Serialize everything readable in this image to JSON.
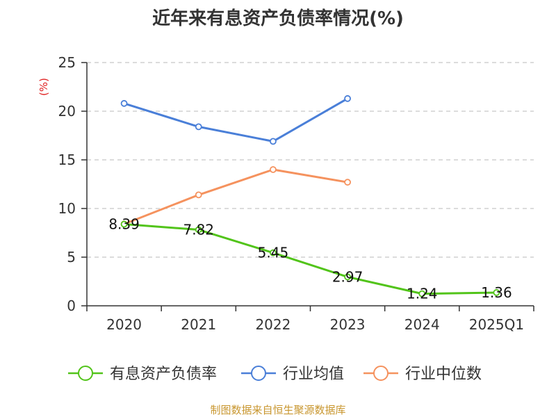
{
  "chart_data": {
    "type": "line",
    "title": "近年来有息资产负债率情况(%)",
    "ylabel": "(%)",
    "xlabel": "",
    "categories": [
      "2020",
      "2021",
      "2022",
      "2023",
      "2024",
      "2025Q1"
    ],
    "ylim": [
      0,
      25
    ],
    "yticks": [
      0,
      5,
      10,
      15,
      20,
      25
    ],
    "grid": true,
    "legend_position": "bottom",
    "series": [
      {
        "name": "有息资产负债率",
        "color": "#52c41a",
        "values": [
          8.39,
          7.82,
          5.45,
          2.97,
          1.24,
          1.36
        ],
        "labels": [
          "8.39",
          "7.82",
          "5.45",
          "2.97",
          "1.24",
          "1.36"
        ]
      },
      {
        "name": "行业均值",
        "color": "#4a7fd8",
        "values": [
          20.8,
          18.4,
          16.9,
          21.3,
          null,
          null
        ]
      },
      {
        "name": "行业中位数",
        "color": "#f5925e",
        "values": [
          8.4,
          11.4,
          14.0,
          12.7,
          null,
          null
        ]
      }
    ]
  },
  "source_note": "制图数据来自恒生聚源数据库"
}
